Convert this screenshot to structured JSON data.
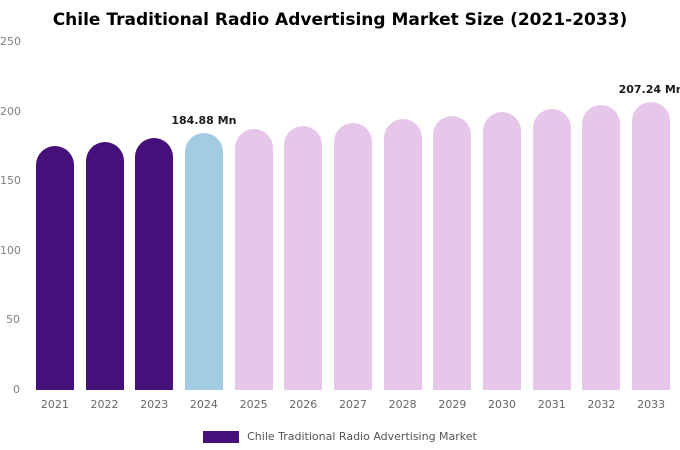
{
  "title": "Chile Traditional Radio Advertising Market Size (2021-2033)",
  "legend": {
    "label": "Chile Traditional Radio Advertising Market",
    "color": "#45107a"
  },
  "chart_data": {
    "type": "bar",
    "title": "Chile Traditional Radio Advertising Market Size (2021-2033)",
    "categories": [
      "2021",
      "2022",
      "2023",
      "2024",
      "2025",
      "2026",
      "2027",
      "2028",
      "2029",
      "2030",
      "2031",
      "2032",
      "2033"
    ],
    "values": [
      175.5,
      178.2,
      181.0,
      184.88,
      187.2,
      189.6,
      192.0,
      194.5,
      196.9,
      199.4,
      202.0,
      204.6,
      207.24
    ],
    "bar_colors": [
      "#45107a",
      "#45107a",
      "#45107a",
      "#a3cce3",
      "#e6c6e9",
      "#e6c6e9",
      "#e6c6e9",
      "#e6c6e9",
      "#e6c6e9",
      "#e6c6e9",
      "#e6c6e9",
      "#e6c6e9",
      "#e6c6e9"
    ],
    "value_labels": {
      "2024": "184.88 Mn",
      "2033": "207.24 Mn"
    },
    "xlabel": "",
    "ylabel": "",
    "ylim": [
      0,
      250
    ],
    "yticks": [
      0,
      50,
      100,
      150,
      200,
      250
    ],
    "grid": false,
    "legend_position": "bottom"
  }
}
